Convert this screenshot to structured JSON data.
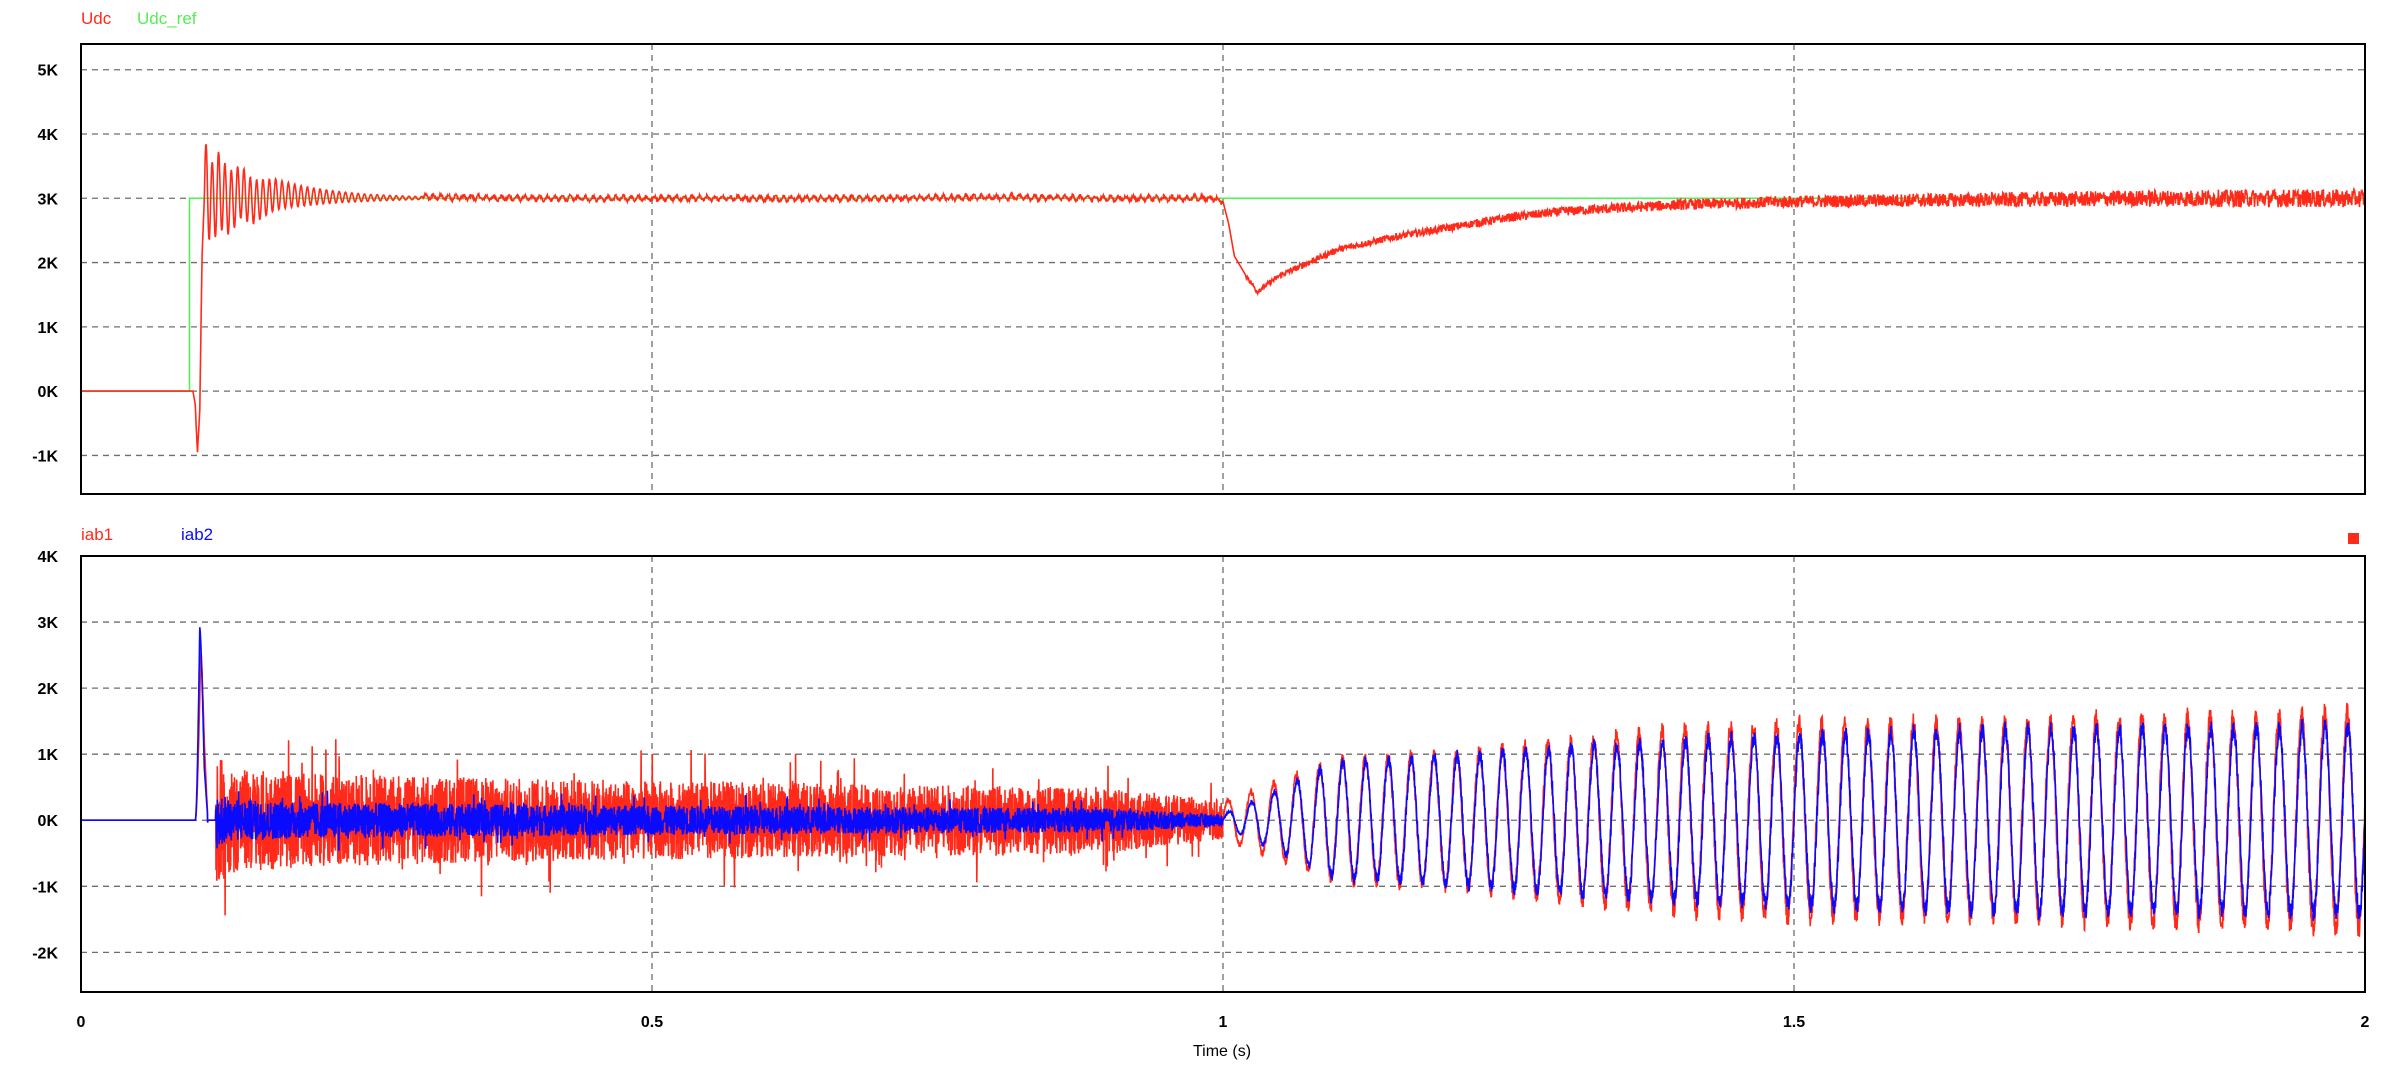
{
  "colors": {
    "udc": "#ff2a1a",
    "udc_ref": "#55ee55",
    "iab1": "#ff2a1a",
    "iab2": "#0a0aff",
    "grid": "#6e6e6e",
    "frame": "#000000"
  },
  "marker_icon": "red-square-icon",
  "chart_data": [
    {
      "type": "line",
      "title": "",
      "xlabel": "",
      "ylabel": "",
      "xlim": [
        0,
        2
      ],
      "ylim": [
        -1.6,
        5.4
      ],
      "grid": true,
      "legend_position": "top-left",
      "y_ticks": [
        {
          "value": 5,
          "label": "5K"
        },
        {
          "value": 4,
          "label": "4K"
        },
        {
          "value": 3,
          "label": "3K"
        },
        {
          "value": 2,
          "label": "2K"
        },
        {
          "value": 1,
          "label": "1K"
        },
        {
          "value": 0,
          "label": "0K"
        },
        {
          "value": -1,
          "label": "-1K"
        }
      ],
      "x_grid": [
        0.5,
        1.0,
        1.5
      ],
      "series": [
        {
          "name": "Udc",
          "x": [
            0,
            0.098,
            0.1,
            0.101,
            0.102,
            0.104,
            0.106,
            0.108,
            0.11,
            0.115,
            0.12,
            0.13,
            0.14,
            0.15,
            0.17,
            0.2,
            0.25,
            0.3,
            0.4,
            0.5,
            0.6,
            0.7,
            0.8,
            0.9,
            0.99,
            1.0,
            1.005,
            1.01,
            1.02,
            1.03,
            1.05,
            1.1,
            1.15,
            1.2,
            1.25,
            1.3,
            1.35,
            1.4,
            1.5,
            1.6,
            1.7,
            1.8,
            1.9,
            2.0
          ],
          "y": [
            0,
            0,
            -0.2,
            -0.6,
            -0.95,
            -0.3,
            2.1,
            3.0,
            4.1,
            2.3,
            3.9,
            2.5,
            3.7,
            2.6,
            3.4,
            3.2,
            3.05,
            3.02,
            3.0,
            3.0,
            3.0,
            3.0,
            3.02,
            3.0,
            3.0,
            2.95,
            2.6,
            2.1,
            1.8,
            1.55,
            1.8,
            2.2,
            2.4,
            2.55,
            2.7,
            2.8,
            2.85,
            2.9,
            2.95,
            2.97,
            2.98,
            3.0,
            3.0,
            3.0
          ]
        },
        {
          "name": "Udc_ref",
          "x": [
            0,
            0.095,
            0.095,
            2.0
          ],
          "y": [
            0,
            0,
            3,
            3
          ]
        }
      ]
    },
    {
      "type": "line",
      "title": "",
      "xlabel": "Time (s)",
      "ylabel": "",
      "xlim": [
        0,
        2
      ],
      "ylim": [
        -2.6,
        4.0
      ],
      "grid": true,
      "legend_position": "top-left",
      "y_ticks": [
        {
          "value": 4,
          "label": "4K"
        },
        {
          "value": 3,
          "label": "3K"
        },
        {
          "value": 2,
          "label": "2K"
        },
        {
          "value": 1,
          "label": "1K"
        },
        {
          "value": 0,
          "label": "0K"
        },
        {
          "value": -1,
          "label": "-1K"
        },
        {
          "value": -2,
          "label": "-2K"
        }
      ],
      "x_ticks": [
        {
          "value": 0,
          "label": "0"
        },
        {
          "value": 0.5,
          "label": "0.5"
        },
        {
          "value": 1,
          "label": "1"
        },
        {
          "value": 1.5,
          "label": "1.5"
        },
        {
          "value": 2,
          "label": "2"
        }
      ],
      "series": [
        {
          "name": "iab1",
          "x": [
            0,
            0.1,
            0.105,
            0.108,
            0.112,
            0.115,
            0.13,
            0.2,
            0.5,
            0.9,
            1.0,
            1.1,
            1.2,
            1.3,
            1.4,
            1.5,
            1.6,
            1.7,
            1.8,
            1.9,
            2.0
          ],
          "y_amplitude": [
            0,
            0,
            2.6,
            1.5,
            0.8,
            1.1,
            0.8,
            0.7,
            0.6,
            0.5,
            0.3,
            1.0,
            1.1,
            1.3,
            1.5,
            1.6,
            1.6,
            1.6,
            1.7,
            1.7,
            1.8
          ],
          "frequency_hz_after_1s": 50
        },
        {
          "name": "iab2",
          "x": [
            0,
            0.1,
            0.104,
            0.108,
            0.112,
            0.13,
            0.2,
            0.5,
            0.9,
            1.0,
            1.1,
            1.2,
            1.3,
            1.4,
            1.5,
            1.6,
            1.7,
            1.8,
            1.9,
            2.0
          ],
          "y_amplitude": [
            0,
            0,
            3.25,
            1.0,
            0.6,
            0.35,
            0.3,
            0.25,
            0.2,
            0.1,
            0.95,
            1.05,
            1.2,
            1.3,
            1.4,
            1.45,
            1.5,
            1.5,
            1.5,
            1.55
          ],
          "frequency_hz_after_1s": 50
        }
      ]
    }
  ]
}
